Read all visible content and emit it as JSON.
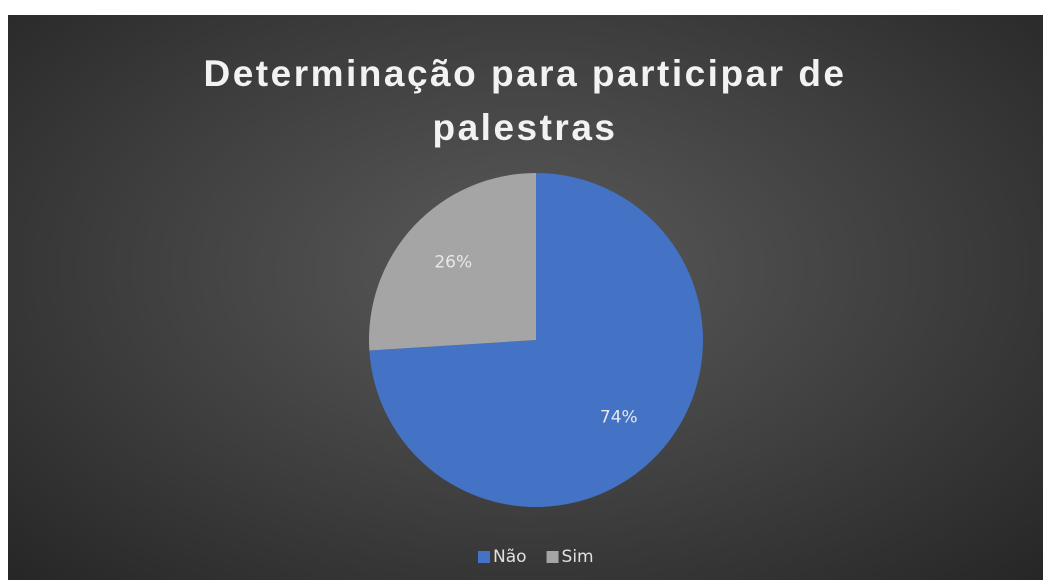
{
  "chart_data": {
    "type": "pie",
    "title": "Determinação para participar de palestras",
    "categories": [
      "Não",
      "Sim"
    ],
    "values": [
      74,
      26
    ],
    "value_labels": [
      "74%",
      "26%"
    ],
    "colors": [
      "#4472c4",
      "#a5a5a5"
    ],
    "legend": "bottom"
  }
}
